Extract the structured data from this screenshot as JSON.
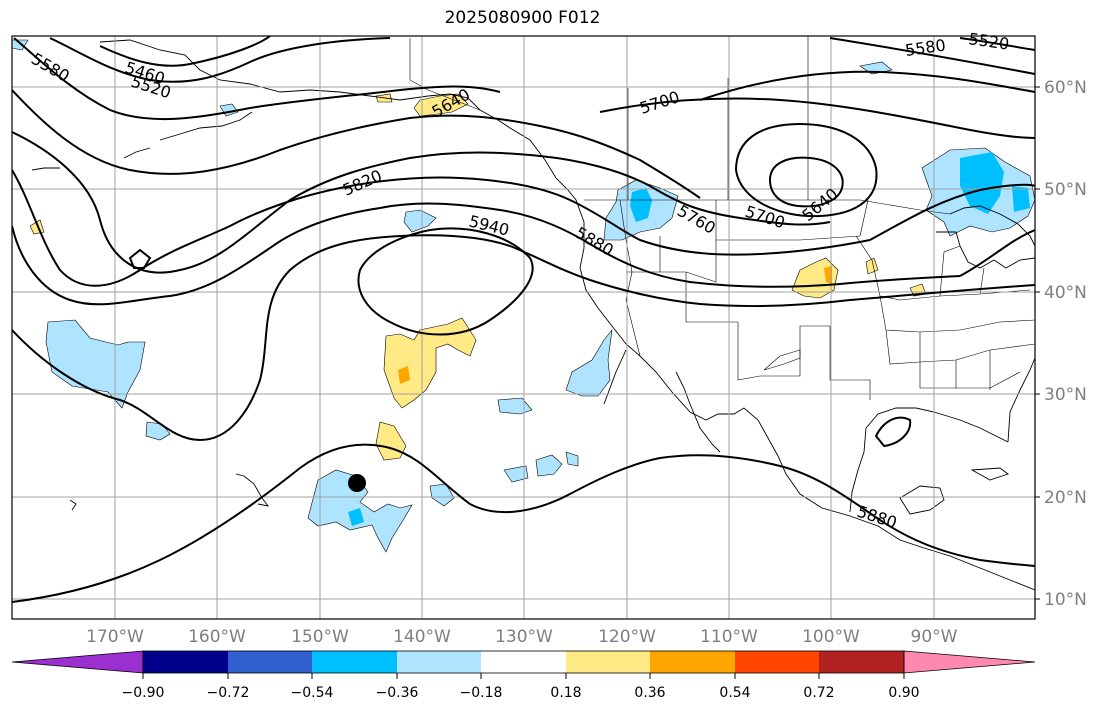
{
  "title": "2025080900 F012",
  "lat_labels": [
    "60°N",
    "50°N",
    "40°N",
    "30°N",
    "20°N",
    "10°N"
  ],
  "lon_labels": [
    "170°W",
    "160°W",
    "150°W",
    "140°W",
    "130°W",
    "120°W",
    "110°W",
    "100°W",
    "90°W"
  ],
  "contour_labels": [
    "5460",
    "5520",
    "5580",
    "5640",
    "5700",
    "5760",
    "5820",
    "5880",
    "5940"
  ],
  "colorbar": {
    "ticks": [
      "−0.90",
      "−0.72",
      "−0.54",
      "−0.36",
      "−0.18",
      "0.18",
      "0.36",
      "0.54",
      "0.72",
      "0.90"
    ],
    "colors": [
      "#9b30d0",
      "#00008b",
      "#3060d0",
      "#00bfff",
      "#aee4ff",
      "#ffffff",
      "#ffea85",
      "#ffa500",
      "#ff4500",
      "#b22222",
      "#ff88b0"
    ]
  },
  "colors": {
    "negative_fill": "#aee4ff",
    "negative_core": "#00bfff",
    "positive_fill": "#ffea85",
    "positive_core": "#ffa500",
    "grid": "#a0a0a0",
    "contour": "#000000"
  },
  "markers": [
    {
      "name": "black-dot",
      "lon": -146.5,
      "lat": 21.2
    }
  ]
}
